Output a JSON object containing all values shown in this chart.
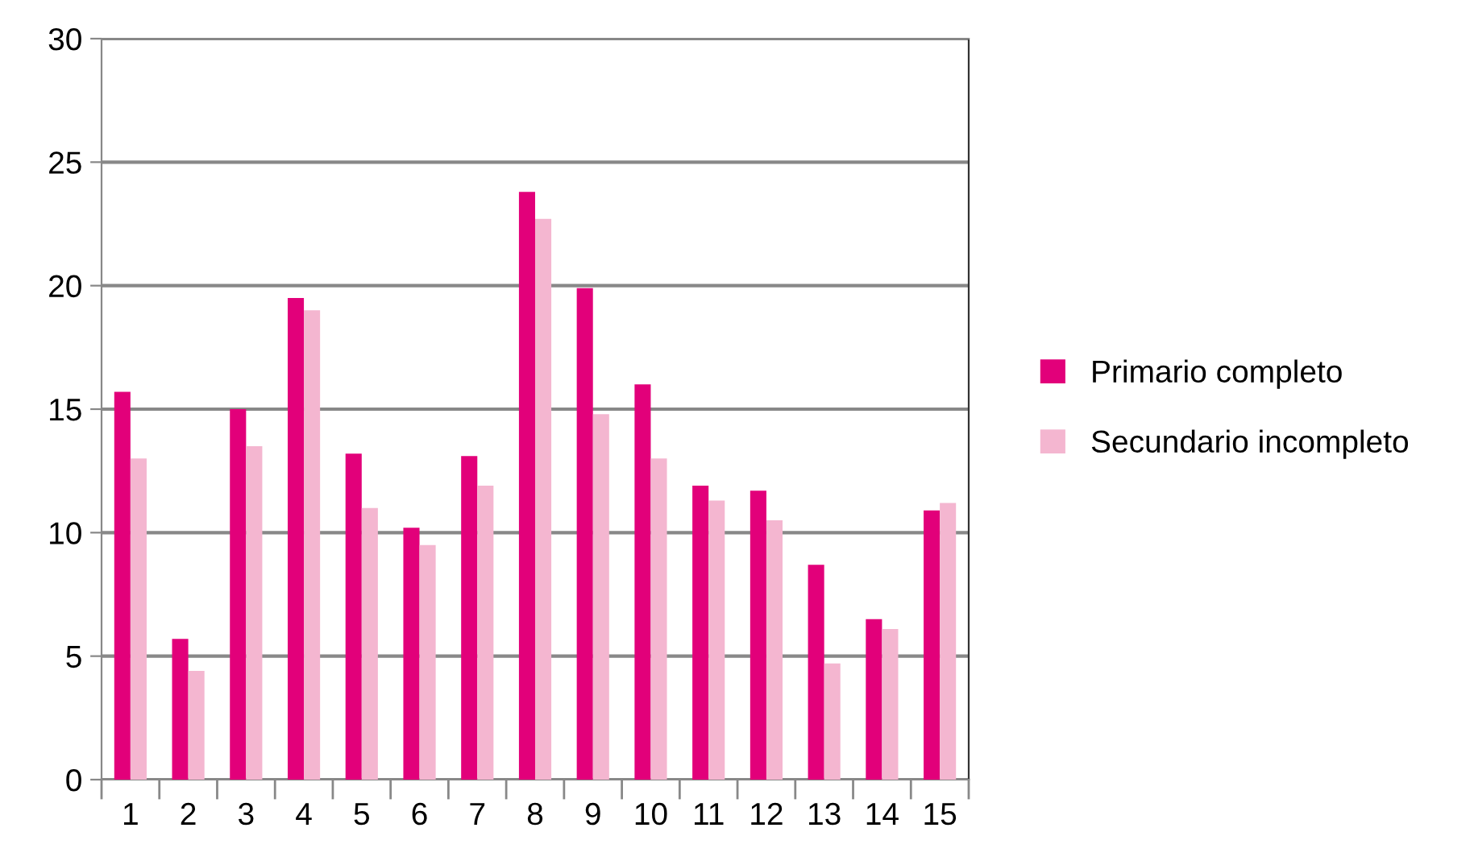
{
  "chart_data": {
    "type": "bar",
    "categories": [
      "1",
      "2",
      "3",
      "4",
      "5",
      "6",
      "7",
      "8",
      "9",
      "10",
      "11",
      "12",
      "13",
      "14",
      "15"
    ],
    "series": [
      {
        "name": "Primario completo",
        "color": "#e2007a",
        "values": [
          15.7,
          5.7,
          15.0,
          19.5,
          13.2,
          10.2,
          13.1,
          23.8,
          19.9,
          16.0,
          11.9,
          11.7,
          8.7,
          6.5,
          10.9
        ]
      },
      {
        "name": "Secundario incompleto",
        "color": "#f4b6d0",
        "values": [
          13.0,
          4.4,
          13.5,
          19.0,
          11.0,
          9.5,
          11.9,
          22.7,
          14.8,
          13.0,
          11.3,
          10.5,
          4.7,
          6.1,
          11.2
        ]
      }
    ],
    "ylim": [
      0,
      30
    ],
    "yticks": [
      0,
      5,
      10,
      15,
      20,
      25,
      30
    ],
    "grid": "y",
    "legend": "right"
  }
}
